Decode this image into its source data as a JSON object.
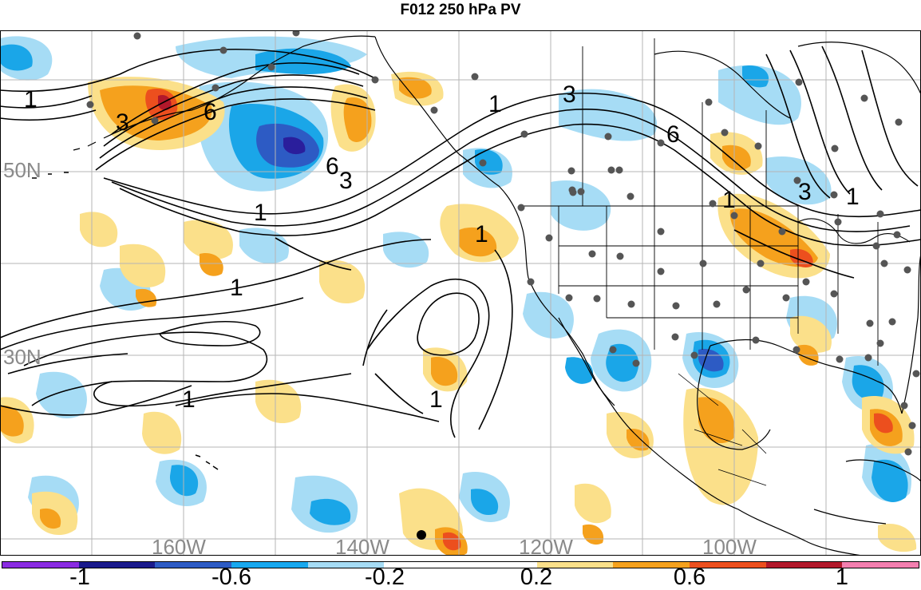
{
  "title": "F012 250 hPa PV",
  "map": {
    "lat_labels": [
      "50N",
      "30N"
    ],
    "lon_labels": [
      "160W",
      "140W",
      "120W",
      "100W"
    ],
    "contour_labels": [
      "1",
      "3",
      "6",
      "6",
      "3",
      "1",
      "1",
      "3",
      "1",
      "6",
      "1",
      "3",
      "1",
      "1",
      "1",
      "1"
    ],
    "shading_palette": {
      "neg_light": "#a6dcf5",
      "neg_mid": "#1aa6e8",
      "neg_strong": "#2d5bc4",
      "neg_deep": "#2a1e9c",
      "pos_light": "#fbe08a",
      "pos_mid": "#f5a11d",
      "pos_strong": "#ec4f1e",
      "pos_deep": "#b2182b"
    }
  },
  "colorbar": {
    "colors": [
      "#8a2be2",
      "#1a1a8c",
      "#2d5bc4",
      "#18a8ef",
      "#a6dcf5",
      "#ffffff",
      "#ffffff",
      "#fbe08a",
      "#f5a11d",
      "#ec4f1e",
      "#b2182b",
      "#f47fb0"
    ],
    "labels": [
      "-1",
      "-0.6",
      "-0.2",
      "0.2",
      "0.6",
      "1"
    ]
  }
}
